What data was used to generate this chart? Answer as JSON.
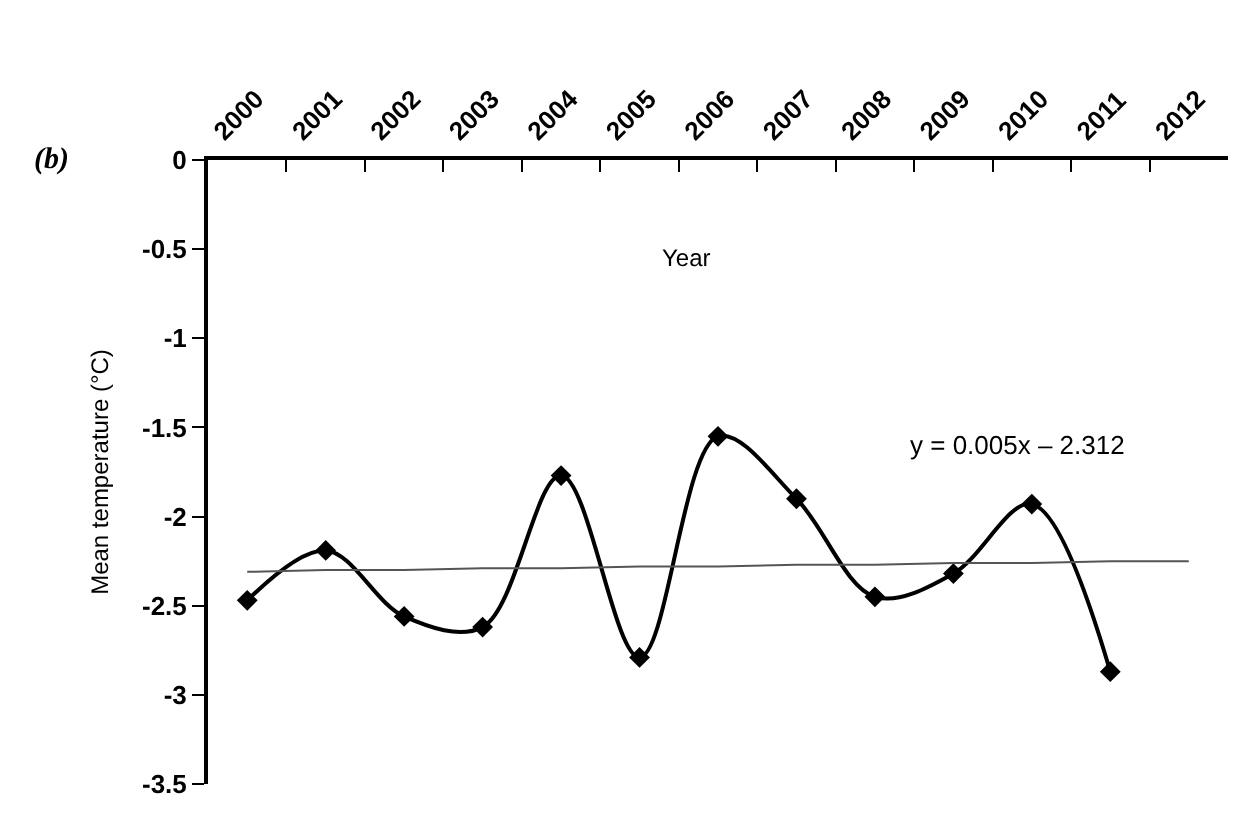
{
  "chart_data": {
    "type": "line",
    "xlabel": "Year",
    "ylabel": "Mean temperature (°C)",
    "annotations": [
      "(b)",
      "y = 0.005x – 2.312"
    ],
    "categories": [
      "2000",
      "2001",
      "2002",
      "2003",
      "2004",
      "2005",
      "2006",
      "2007",
      "2008",
      "2009",
      "2010",
      "2011",
      "2012"
    ],
    "series": [
      {
        "color": "#000000",
        "marker": "diamond",
        "values": [
          -2.47,
          -2.19,
          -2.56,
          -2.62,
          -1.77,
          -2.79,
          -1.55,
          -1.9,
          -2.45,
          -2.32,
          -1.93,
          -2.87,
          null
        ]
      },
      {
        "color": "#555555",
        "marker": "none",
        "values": [
          -2.31,
          -2.3,
          -2.3,
          -2.29,
          -2.29,
          -2.28,
          -2.28,
          -2.27,
          -2.27,
          -2.26,
          -2.26,
          -2.25,
          -2.25
        ]
      }
    ],
    "ylim": [
      -3.5,
      0
    ],
    "yticks": [
      0,
      -0.5,
      -1,
      -1.5,
      -2,
      -2.5,
      -3,
      -3.5
    ],
    "legend": false
  }
}
